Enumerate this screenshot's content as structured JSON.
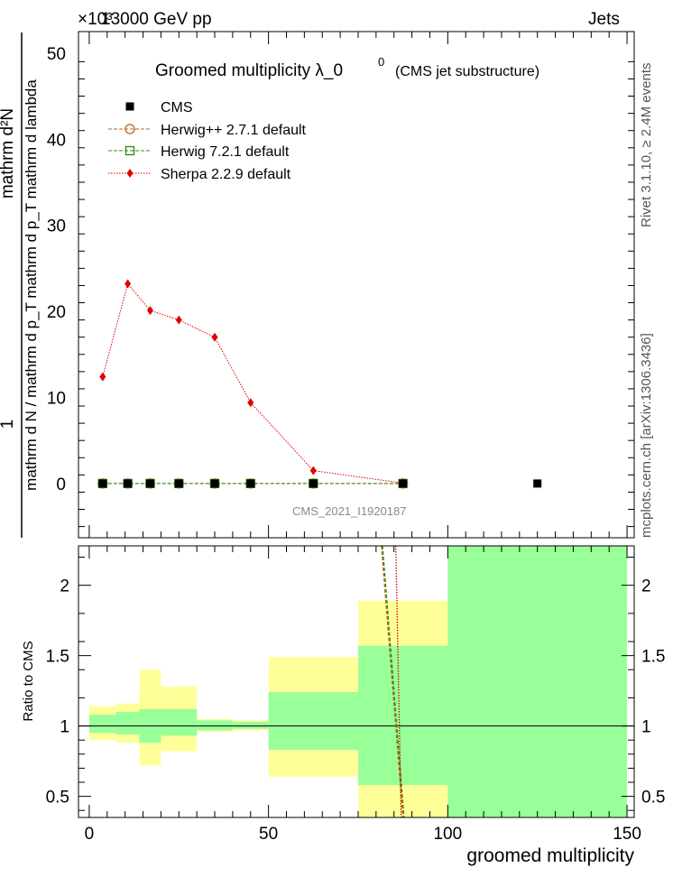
{
  "header": {
    "energy_label": "13000 GeV pp",
    "process_label": "Jets",
    "y_exponent_label": "×10³"
  },
  "side_text": {
    "rivet": "Rivet 3.1.10, ≥ 2.4M events",
    "source": "mcplots.cern.ch [arXiv:1306.3436]"
  },
  "analysis_id": "CMS_2021_I1920187",
  "chart_data": [
    {
      "type": "line",
      "title_main": "Groomed multiplicity  λ_0",
      "title_sup": "0",
      "title_suffix": "(CMS jet substructure)",
      "ylabel_top": "1",
      "ylabel_num": "mathrm d²N",
      "ylabel_den": "mathrm d N / mathrm d p_T mathrm d p_T mathrm d lambda",
      "ylim": [
        -6.3,
        52.5
      ],
      "xlim": [
        -3,
        152
      ],
      "y_ticks": [
        0,
        10,
        20,
        30,
        40,
        50
      ],
      "legend_position": "top-left",
      "series": [
        {
          "name": "CMS",
          "color": "#000000",
          "marker": "square-filled",
          "x": [
            3.75,
            10.75,
            17,
            25,
            35,
            45,
            62.5,
            87.5,
            125
          ],
          "y": [
            0,
            0,
            0,
            0,
            0,
            0,
            0,
            0,
            0
          ]
        },
        {
          "name": "Herwig++ 2.7.1 default",
          "color": "#b8661c",
          "marker": "circle-open",
          "x": [
            3.75,
            10.75,
            17,
            25,
            35,
            45,
            62.5,
            87.5
          ],
          "y": [
            0,
            0,
            0,
            0,
            0,
            0,
            0,
            0
          ]
        },
        {
          "name": "Herwig 7.2.1 default",
          "color": "#2e8b10",
          "marker": "square-open",
          "x": [
            3.75,
            10.75,
            17,
            25,
            35,
            45,
            62.5,
            87.5
          ],
          "y": [
            0,
            0,
            0,
            0,
            0,
            0,
            0,
            0
          ]
        },
        {
          "name": "Sherpa 2.2.9 default",
          "color": "#e00000",
          "marker": "diamond-filled",
          "x": [
            3.75,
            10.75,
            17,
            25,
            35,
            45,
            62.5,
            87.5
          ],
          "y": [
            12.4,
            23.2,
            20.1,
            19.0,
            17.0,
            9.4,
            1.5,
            0.05
          ]
        }
      ]
    },
    {
      "type": "area",
      "ylabel": "Ratio to CMS",
      "xlabel": "groomed multiplicity",
      "xlim": [
        -3,
        152
      ],
      "ylim": [
        0.35,
        2.28
      ],
      "x_ticks": [
        0,
        50,
        100,
        150
      ],
      "y_ticks": [
        0.5,
        1,
        1.5,
        2
      ],
      "bins": [
        {
          "lo": 0,
          "hi": 7.5,
          "green": [
            0.95,
            1.08
          ],
          "yellow": [
            0.9,
            1.14
          ]
        },
        {
          "lo": 7.5,
          "hi": 14,
          "green": [
            0.94,
            1.1
          ],
          "yellow": [
            0.88,
            1.16
          ]
        },
        {
          "lo": 14,
          "hi": 20,
          "green": [
            0.88,
            1.12
          ],
          "yellow": [
            0.72,
            1.4
          ]
        },
        {
          "lo": 20,
          "hi": 30,
          "green": [
            0.93,
            1.12
          ],
          "yellow": [
            0.82,
            1.28
          ]
        },
        {
          "lo": 30,
          "hi": 40,
          "green": [
            0.97,
            1.04
          ],
          "yellow": [
            0.96,
            1.05
          ]
        },
        {
          "lo": 40,
          "hi": 50,
          "green": [
            0.98,
            1.03
          ],
          "yellow": [
            0.97,
            1.04
          ]
        },
        {
          "lo": 50,
          "hi": 75,
          "green": [
            0.83,
            1.24
          ],
          "yellow": [
            0.64,
            1.49
          ]
        },
        {
          "lo": 75,
          "hi": 100,
          "green": [
            0.58,
            1.57
          ],
          "yellow": [
            0.35,
            1.89
          ]
        },
        {
          "lo": 100,
          "hi": 150,
          "green": [
            0.35,
            2.28
          ],
          "yellow": [
            0.35,
            2.28
          ]
        }
      ],
      "reference_line": 1,
      "series": [
        {
          "name": "Herwig++ 2.7.1 default",
          "color": "#b8661c",
          "x": [
            81.5,
            87.5
          ],
          "y": [
            2.28,
            0.35
          ]
        },
        {
          "name": "Herwig 7.2.1 default",
          "color": "#2e8b10",
          "x": [
            81.8,
            87.8
          ],
          "y": [
            2.28,
            0.35
          ]
        },
        {
          "name": "Sherpa 2.2.9 default",
          "color": "#e00000",
          "x": [
            85.5,
            87.0
          ],
          "y": [
            2.28,
            0.35
          ]
        }
      ]
    }
  ]
}
